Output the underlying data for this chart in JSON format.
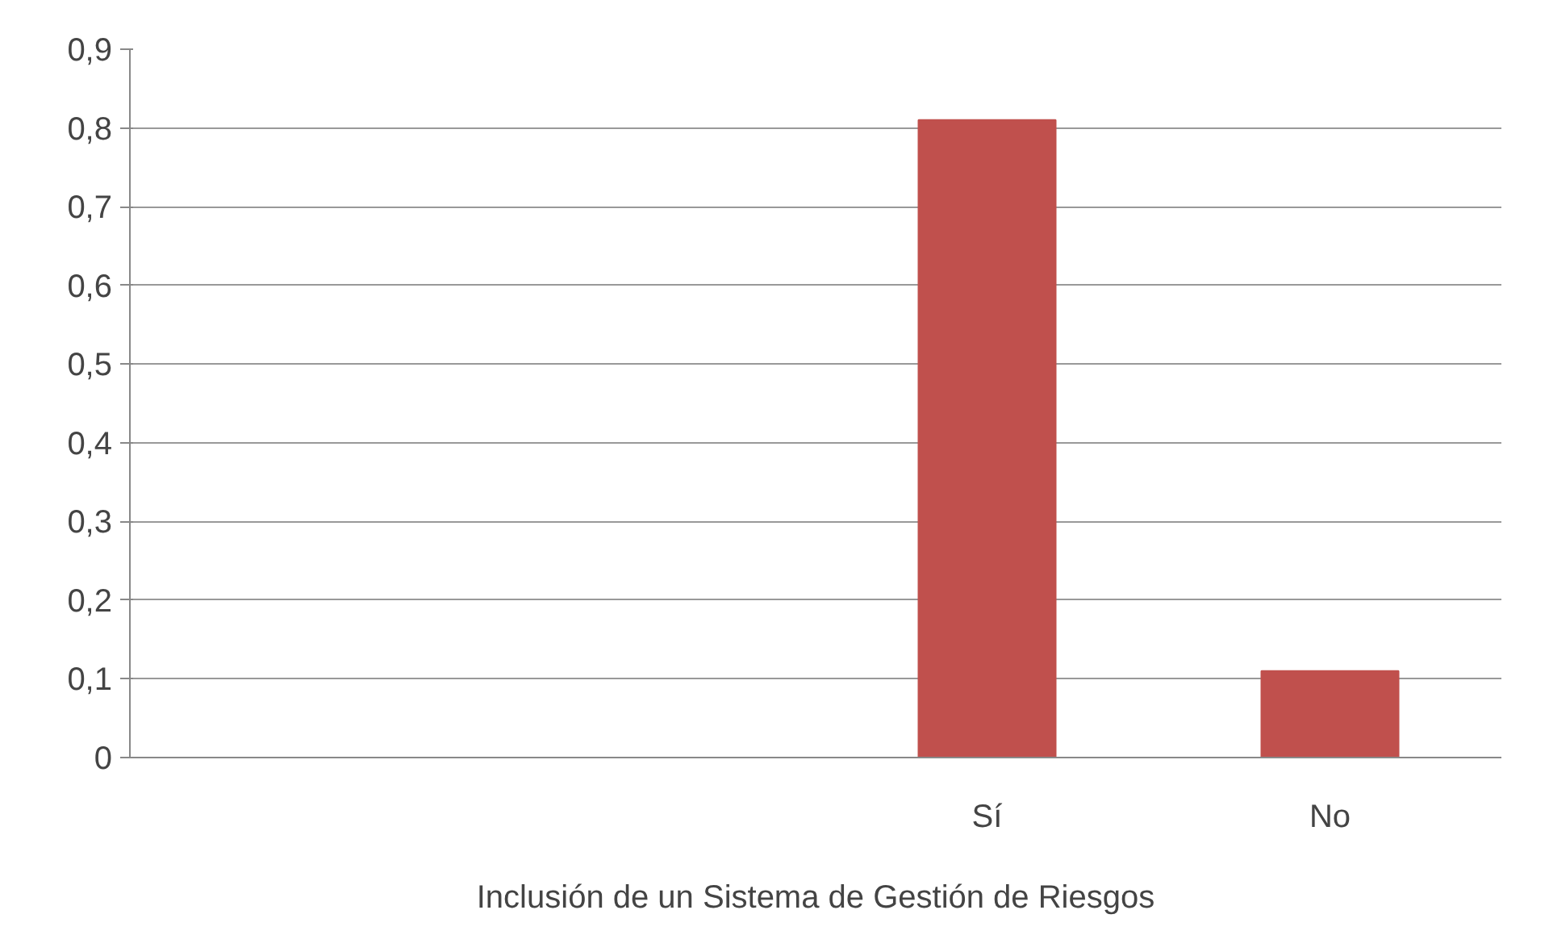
{
  "chart_data": {
    "type": "bar",
    "xlabel": "Inclusión de un Sistema de Gestión de Riesgos",
    "categories": [
      null,
      null,
      "Sí",
      "No"
    ],
    "values": [
      null,
      null,
      0.81,
      0.11
    ],
    "color": "#c0504d",
    "ylim": [
      0,
      0.9
    ],
    "yticks": [
      {
        "value": 0,
        "label": "0"
      },
      {
        "value": 0.1,
        "label": "0,1"
      },
      {
        "value": 0.2,
        "label": "0,2"
      },
      {
        "value": 0.3,
        "label": "0,3"
      },
      {
        "value": 0.4,
        "label": "0,4"
      },
      {
        "value": 0.5,
        "label": "0,5"
      },
      {
        "value": 0.6,
        "label": "0,6"
      },
      {
        "value": 0.7,
        "label": "0,7"
      },
      {
        "value": 0.8,
        "label": "0,8"
      },
      {
        "value": 0.9,
        "label": "0,9"
      }
    ],
    "grid": "y"
  }
}
